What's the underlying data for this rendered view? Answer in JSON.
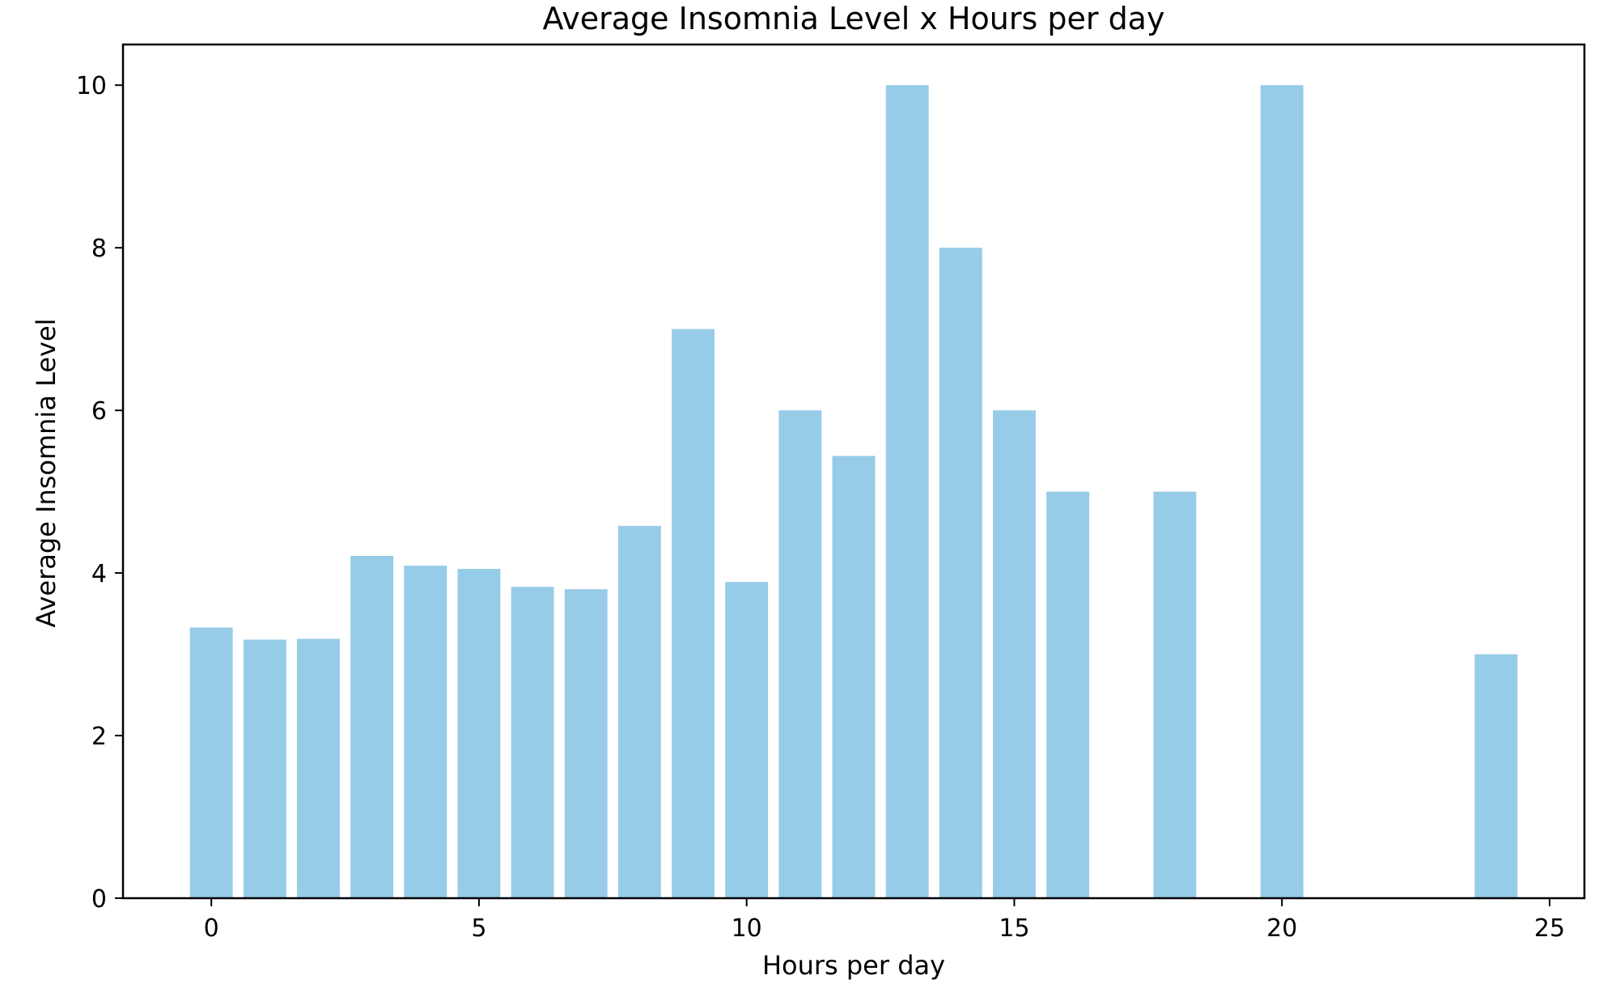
{
  "chart_data": {
    "type": "bar",
    "title": "Average Insomnia Level x Hours per day",
    "xlabel": "Hours per day",
    "ylabel": "Average Insomnia Level",
    "xlim": [
      -1.65,
      25.65
    ],
    "ylim": [
      0,
      10.5
    ],
    "xticks": [
      0,
      5,
      10,
      15,
      20,
      25
    ],
    "yticks": [
      0,
      2,
      4,
      6,
      8,
      10
    ],
    "bar_width": 0.8,
    "grid": false,
    "bar_color": "#97CCE8",
    "x": [
      0,
      1,
      2,
      3,
      4,
      5,
      6,
      7,
      8,
      9,
      10,
      11,
      12,
      13,
      14,
      15,
      16,
      18,
      20,
      24
    ],
    "values": [
      3.33,
      3.18,
      3.19,
      4.21,
      4.09,
      4.05,
      3.83,
      3.8,
      4.58,
      7.0,
      3.89,
      6.0,
      5.44,
      10.0,
      8.0,
      6.0,
      5.0,
      5.0,
      10.0,
      3.0
    ]
  }
}
